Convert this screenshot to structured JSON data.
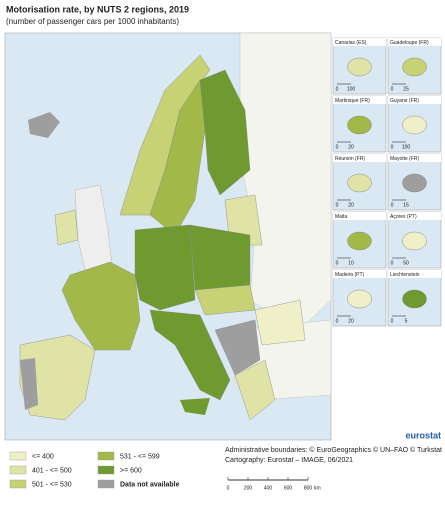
{
  "header": {
    "title": "Motorisation rate, by NUTS 2 regions, 2019",
    "subtitle": "(number of passenger cars per 1000 inhabitants)"
  },
  "insets": [
    {
      "name": "Canarias (ES)",
      "color": "#dfe3a6",
      "scale": [
        0,
        100
      ]
    },
    {
      "name": "Guadeloupe (FR)",
      "color": "#c6d274",
      "scale": [
        0,
        25
      ]
    },
    {
      "name": "Martinique (FR)",
      "color": "#a2b94a",
      "scale": [
        0,
        20
      ]
    },
    {
      "name": "Guyane (FR)",
      "color": "#f0f0c8",
      "scale": [
        0,
        100
      ]
    },
    {
      "name": "Réunion (FR)",
      "color": "#dfe3a6",
      "scale": [
        0,
        20
      ]
    },
    {
      "name": "Mayotte (FR)",
      "color": "#9e9e9e",
      "scale": [
        0,
        15
      ]
    },
    {
      "name": "Malta",
      "color": "#a2b94a",
      "scale": [
        0,
        10
      ]
    },
    {
      "name": "Açores (PT)",
      "color": "#f0f0c8",
      "scale": [
        0,
        50
      ]
    },
    {
      "name": "Madeira (PT)",
      "color": "#f0f0c8",
      "scale": [
        0,
        20
      ]
    },
    {
      "name": "Liechtenstein",
      "color": "#6e9a2f",
      "scale": [
        0,
        5
      ]
    }
  ],
  "legend": [
    {
      "label": "<= 400",
      "color": "#f0f0c8"
    },
    {
      "label": "401 - <= 500",
      "color": "#dfe3a6"
    },
    {
      "label": "501 - <= 530",
      "color": "#c6d274"
    },
    {
      "label": "531 - <= 599",
      "color": "#a2b94a"
    },
    {
      "label": ">= 600",
      "color": "#6e9a2f"
    },
    {
      "label": "Data not available",
      "color": "#9e9e9e"
    }
  ],
  "credits": [
    "Administrative boundaries: © EuroGeographics © UN–FAO © Turkstat",
    "Cartography: Eurostat – IMAGE, 06/2021"
  ],
  "scale_bar": {
    "ticks": [
      0,
      200,
      400,
      600,
      800
    ],
    "unit": "km"
  },
  "logo": "eurostat"
}
